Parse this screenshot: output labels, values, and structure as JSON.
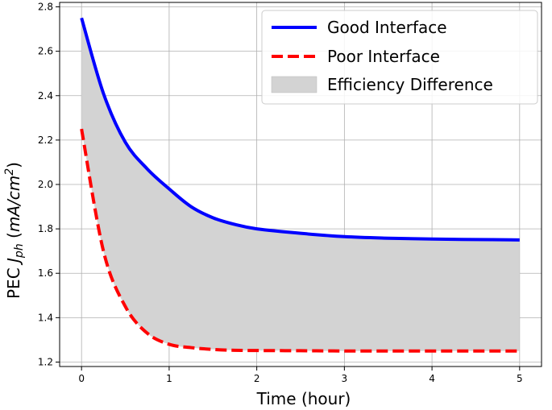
{
  "chart_data": {
    "type": "line",
    "title": "",
    "xlabel": "Time (hour)",
    "ylabel": {
      "prefix": "PEC ",
      "symbol": "J",
      "subscript": "ph",
      "unit_open": " (",
      "unit": "mA/cm",
      "superscript": "2",
      "unit_close": ")"
    },
    "xlim": [
      -0.25,
      5.25
    ],
    "ylim": [
      1.18,
      2.82
    ],
    "x_ticks": [
      0,
      1,
      2,
      3,
      4,
      5
    ],
    "y_ticks": [
      1.2,
      1.4,
      1.6,
      1.8,
      2.0,
      2.2,
      2.4,
      2.6,
      2.8
    ],
    "x_tick_labels": [
      "0",
      "1",
      "2",
      "3",
      "4",
      "5"
    ],
    "y_tick_labels": [
      "1.2",
      "1.4",
      "1.6",
      "1.8",
      "2.0",
      "2.2",
      "2.4",
      "2.6",
      "2.8"
    ],
    "grid": true,
    "legend_position": "top-right",
    "x": [
      0,
      0.25,
      0.5,
      0.75,
      1,
      1.25,
      1.5,
      1.75,
      2,
      2.5,
      3,
      3.5,
      4,
      4.5,
      5
    ],
    "series": [
      {
        "name": "Good Interface",
        "color": "#0000ff",
        "style": "solid",
        "values": [
          2.75,
          2.41,
          2.19,
          2.07,
          1.98,
          1.9,
          1.85,
          1.82,
          1.8,
          1.78,
          1.765,
          1.758,
          1.754,
          1.752,
          1.75
        ]
      },
      {
        "name": "Poor Interface",
        "color": "#ff0000",
        "style": "dashed",
        "values": [
          2.25,
          1.7,
          1.45,
          1.33,
          1.28,
          1.265,
          1.257,
          1.253,
          1.252,
          1.251,
          1.25,
          1.25,
          1.25,
          1.25,
          1.25
        ]
      }
    ],
    "fill": {
      "name": "Efficiency Difference",
      "color": "#d3d3d3",
      "between": [
        "Good Interface",
        "Poor Interface"
      ]
    }
  }
}
